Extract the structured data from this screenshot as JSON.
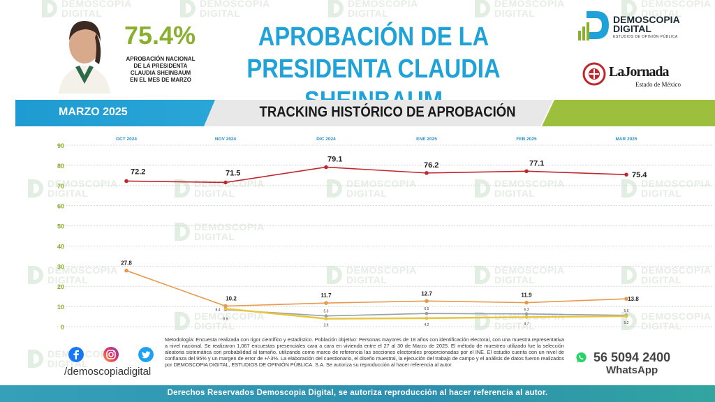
{
  "header": {
    "big_pct": "75.4%",
    "pct_caption": "APROBACIÓN NACIONAL\nDE LA PRESIDENTA\nCLAUDIA SHEINBAUM\nEN EL MES DE MARZO",
    "title": "APROBACIÓN DE LA\nPRESIDENTA CLAUDIA SHEINBAUM",
    "logo_demoscopia": {
      "name": "DEMOSCOPIA\nDIGITAL",
      "sub": "ESTUDIOS DE OPINIÓN PÚBLICA"
    },
    "logo_jornada": {
      "name": "LaJornada",
      "sub": "Estado de México"
    }
  },
  "band": {
    "month": "MARZO 2025",
    "title": "TRACKING HISTÓRICO DE APROBACIÓN"
  },
  "watermark": "DEMOSCOPIA\nDIGITAL",
  "colors": {
    "accent_blue": "#1ea2d8",
    "accent_green": "#8aae2e",
    "line_red": "#c0272d",
    "line_orange": "#e89a4c",
    "line_gray": "#9aa0a8",
    "line_yellow": "#e8c53a"
  },
  "chart_data": {
    "type": "line",
    "categories": [
      "OCT 2024",
      "NOV 2024",
      "DIC 2024",
      "ENE 2025",
      "FEB 2025",
      "MAR 2025"
    ],
    "yticks": [
      "90",
      "80",
      "70",
      "60",
      "50",
      "40",
      "30",
      "20",
      "10",
      "0"
    ],
    "ylim": [
      0,
      90
    ],
    "grid": true,
    "series": [
      {
        "key": "red",
        "values": [
          72.2,
          71.5,
          79.1,
          76.2,
          77.1,
          75.4
        ],
        "labels": [
          "72.2",
          "71.5",
          "79.1",
          "76.2",
          "77.1",
          "75.4"
        ]
      },
      {
        "key": "orange",
        "values": [
          27.8,
          10.2,
          11.7,
          12.7,
          11.9,
          13.8
        ],
        "labels": [
          "27.8",
          "10.2",
          "11.7",
          "12.7",
          "11.9",
          "13.8"
        ]
      },
      {
        "key": "gray",
        "values": [
          null,
          8.4,
          5.3,
          6.5,
          6.3,
          5.6
        ],
        "labels": [
          "",
          "8.4",
          "5.3",
          "6.5",
          "6.3",
          "5.6"
        ]
      },
      {
        "key": "yellow",
        "values": [
          null,
          8.9,
          3.9,
          4.2,
          4.7,
          5.2
        ],
        "labels": [
          "",
          "8.9",
          "3.9",
          "4.2",
          "4.7",
          "5.2"
        ]
      }
    ]
  },
  "methodology": "Metodología: Encuesta realizada con rigor científico y estadístico. Población objetivo: Personas mayores de 18 años con identificación electoral, con una muestra representativa a nivel nacional. Se realizaron 1,067 encuestas presenciales cara a cara en vivienda entre el 27 al 30 de Marzo de 2025. El método de muestreo utilizado fue la selección aleatoria sistemática con probabilidad al tamaño, utilizando como marco de referencia las secciones electorales proporcionadas por el INE. El estudio cuenta con un nivel de confianza del 95% y un margen de error de +/-3%. La elaboración del cuestionario, el diseño muestral, la ejecución del trabajo de campo y el análisis de datos fueron realizados por DEMOSCOPIA DIGITAL, ESTUDIOS DE OPINIÓN PÚBLICA. S.A. Se autoriza su reproducción al hacer referencia al autor.",
  "social": {
    "icons": [
      "facebook-icon",
      "instagram-icon",
      "twitter-icon"
    ],
    "handle": "/demoscopiadigital",
    "phone": "56 5094 2400",
    "whatsapp": "WhatsApp"
  },
  "footer": "Derechos Reservados Demoscopia Digital, se autoriza reproducción al hacer referencia al autor."
}
